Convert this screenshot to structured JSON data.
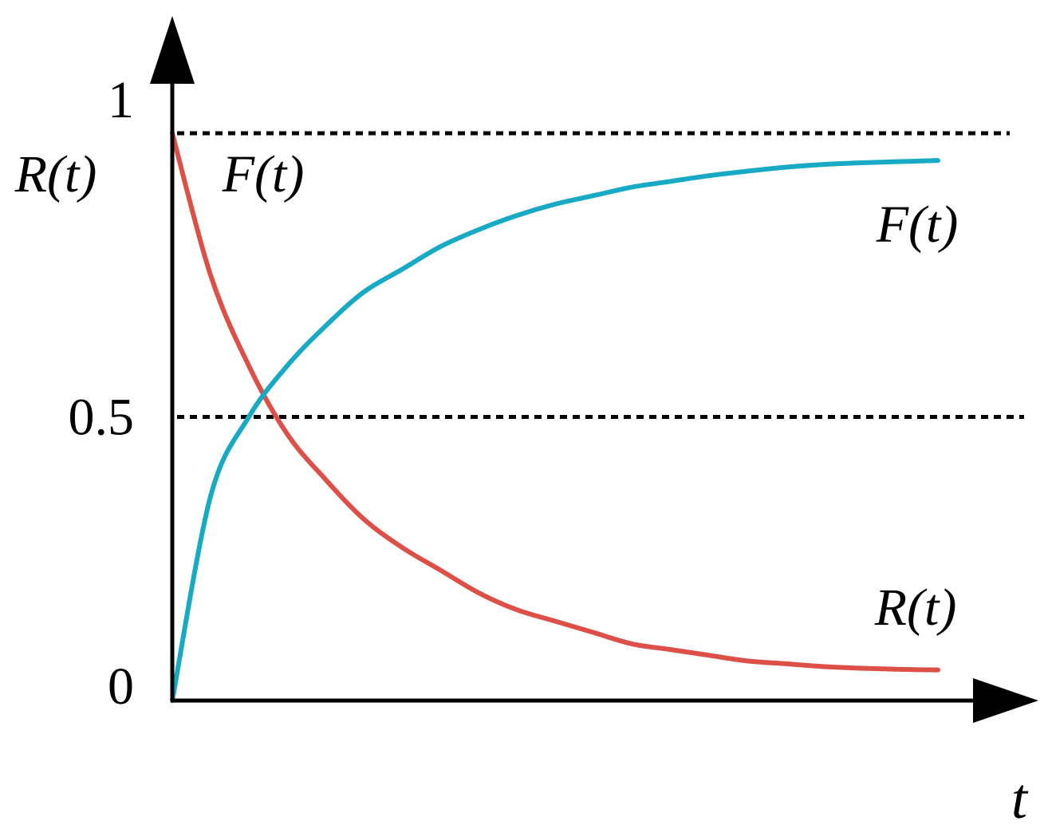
{
  "chart_data": {
    "type": "line",
    "ylabel": "R(t)  F(t)",
    "ylabel_parts": [
      "R(t)",
      "F(t)"
    ],
    "xlabel": "t",
    "ylim": [
      0,
      1
    ],
    "x_domain": [
      0,
      1
    ],
    "y_ticks": [
      {
        "value": 0,
        "label": "0"
      },
      {
        "value": 0.5,
        "label": "0.5"
      },
      {
        "value": 1,
        "label": "1"
      }
    ],
    "reference_lines": [
      {
        "y": 1,
        "style": "dotted"
      },
      {
        "y": 0.5,
        "style": "dotted"
      }
    ],
    "series": [
      {
        "name": "R(t)",
        "color": "#dd5048",
        "x": [
          0,
          0.05,
          0.1,
          0.15,
          0.2,
          0.25,
          0.3,
          0.35,
          0.4,
          0.45,
          0.5,
          0.55,
          0.6,
          0.65,
          0.7,
          0.75,
          0.8,
          0.85,
          0.9,
          0.95,
          1.0
        ],
        "values": [
          1.0,
          0.75,
          0.59,
          0.47,
          0.39,
          0.32,
          0.27,
          0.23,
          0.19,
          0.16,
          0.14,
          0.12,
          0.1,
          0.09,
          0.08,
          0.07,
          0.065,
          0.06,
          0.057,
          0.055,
          0.054
        ]
      },
      {
        "name": "F(t)",
        "color": "#18aac5",
        "x": [
          0,
          0.05,
          0.1,
          0.15,
          0.2,
          0.25,
          0.3,
          0.35,
          0.4,
          0.45,
          0.5,
          0.55,
          0.6,
          0.65,
          0.7,
          0.75,
          0.8,
          0.85,
          0.9,
          0.95,
          1.0
        ],
        "values": [
          0.0,
          0.36,
          0.5,
          0.59,
          0.66,
          0.72,
          0.76,
          0.8,
          0.83,
          0.855,
          0.875,
          0.89,
          0.905,
          0.915,
          0.925,
          0.933,
          0.94,
          0.945,
          0.948,
          0.95,
          0.952
        ]
      }
    ],
    "annotations": [
      {
        "text": "F(t)",
        "series": "F(t)"
      },
      {
        "text": "R(t)",
        "series": "R(t)"
      }
    ],
    "axis_color": "#000000",
    "grid": false,
    "legend": "none"
  }
}
